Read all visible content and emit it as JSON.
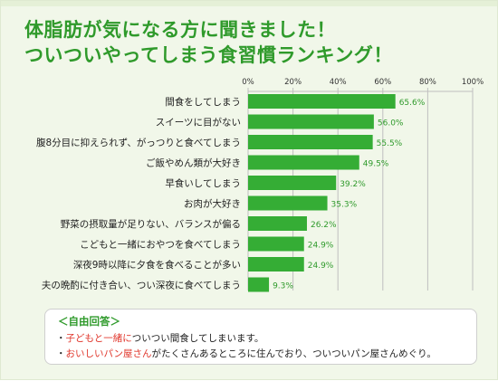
{
  "title_lines": [
    "体脂肪が気になる方に聞きました！",
    "ついついやってしまう食習慣ランキング！"
  ],
  "colors": {
    "title": "#2f9a2b",
    "bar": "#35ad35",
    "value_label": "#2f9a2b",
    "grid": "#bfbfbf",
    "highlight": "#e0362b",
    "background": "#f1f7e9"
  },
  "chart_data": {
    "type": "bar",
    "orientation": "horizontal",
    "title": "体脂肪が気になる方に聞きました！ ついついやってしまう食習慣ランキング！",
    "categories": [
      "間食をしてしまう",
      "スイーツに目がない",
      "腹8分目に抑えられず、がっつりと食べてしまう",
      "ご飯やめん類が大好き",
      "早食いしてしまう",
      "お肉が大好き",
      "野菜の摂取量が足りない、バランスが偏る",
      "こどもと一緒におやつを食べてしまう",
      "深夜9時以降に夕食を食べることが多い",
      "夫の晩酌に付き合い、つい深夜に食べてしまう"
    ],
    "values": [
      65.6,
      56.0,
      55.5,
      49.5,
      39.2,
      35.3,
      26.2,
      24.9,
      24.9,
      9.3
    ],
    "value_labels": [
      "65.6%",
      "56.0%",
      "55.5%",
      "49.5%",
      "39.2%",
      "35.3%",
      "26.2%",
      "24.9%",
      "24.9%",
      "9.3%"
    ],
    "xlim": [
      0,
      100
    ],
    "x_ticks": [
      0,
      20,
      40,
      60,
      80,
      100
    ],
    "x_tick_labels": [
      "0%",
      "20%",
      "40%",
      "60%",
      "80%",
      "100%"
    ],
    "grid": true,
    "legend": "none"
  },
  "callout": {
    "heading": "＜自由回答＞",
    "lines": [
      {
        "bullet": "・",
        "highlight": "子どもと一緒に",
        "rest": "ついつい間食してしまいます。"
      },
      {
        "bullet": "・",
        "highlight": "おいしいパン屋さん",
        "rest": "がたくさんあるところに住んでおり、ついついパン屋さんめぐり。"
      }
    ]
  }
}
